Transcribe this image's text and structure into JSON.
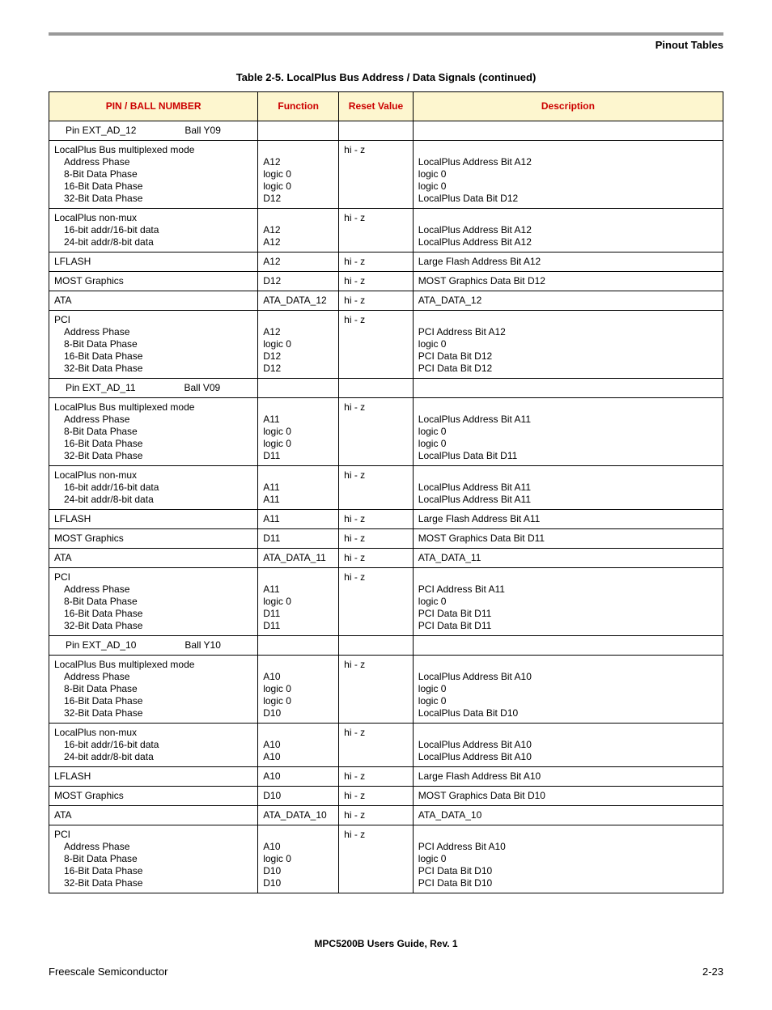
{
  "header": {
    "section": "Pinout Tables"
  },
  "table": {
    "title": "Table 2-5. LocalPlus Bus Address / Data Signals (continued)",
    "columns": [
      "PIN / BALL NUMBER",
      "Function",
      "Reset Value",
      "Description"
    ],
    "groups": [
      {
        "pin_label_prefix": "Pin  EXT_AD_12",
        "pin_label_ball": "Ball Y09",
        "rows": [
          {
            "c1": "LocalPlus Bus multiplexed mode\n  Address Phase\n  8-Bit Data Phase\n  16-Bit Data Phase\n  32-Bit Data Phase",
            "c2": "\nA12\nlogic 0\nlogic 0\nD12",
            "c3": "hi - z",
            "c4": "\nLocalPlus Address Bit A12\nlogic 0\nlogic 0\nLocalPlus Data Bit D12"
          },
          {
            "c1": "LocalPlus non-mux\n  16-bit addr/16-bit data\n  24-bit addr/8-bit data",
            "c2": "\nA12\nA12",
            "c3": "hi - z",
            "c4": "\nLocalPlus Address Bit A12\nLocalPlus Address Bit A12"
          },
          {
            "c1": "LFLASH",
            "c2": "A12",
            "c3": "hi - z",
            "c4": "Large Flash Address Bit A12"
          },
          {
            "c1": "MOST Graphics",
            "c2": "D12",
            "c3": "hi - z",
            "c4": "MOST Graphics Data Bit D12"
          },
          {
            "c1": "ATA",
            "c2": "ATA_DATA_12",
            "c3": "hi - z",
            "c4": "ATA_DATA_12"
          },
          {
            "c1": "PCI\n  Address Phase\n  8-Bit Data Phase\n  16-Bit Data Phase\n  32-Bit Data Phase",
            "c2": "\nA12\nlogic 0\nD12\nD12",
            "c3": "hi - z",
            "c4": "\nPCI Address Bit A12\nlogic 0\nPCI Data Bit D12\nPCI Data Bit D12"
          }
        ]
      },
      {
        "pin_label_prefix": "Pin  EXT_AD_11",
        "pin_label_ball": "Ball V09",
        "rows": [
          {
            "c1": "LocalPlus Bus multiplexed mode\n  Address Phase\n  8-Bit Data Phase\n  16-Bit Data Phase\n  32-Bit Data Phase",
            "c2": "\nA11\nlogic 0\nlogic 0\nD11",
            "c3": "hi - z",
            "c4": "\nLocalPlus Address Bit A11\nlogic 0\nlogic 0\nLocalPlus Data Bit D11"
          },
          {
            "c1": "LocalPlus non-mux\n  16-bit addr/16-bit data\n  24-bit addr/8-bit data",
            "c2": "\nA11\nA11",
            "c3": "hi - z",
            "c4": "\nLocalPlus Address Bit A11\nLocalPlus Address Bit A11"
          },
          {
            "c1": "LFLASH",
            "c2": "A11",
            "c3": "hi - z",
            "c4": "Large Flash Address Bit A11"
          },
          {
            "c1": "MOST Graphics",
            "c2": "D11",
            "c3": "hi - z",
            "c4": "MOST Graphics Data Bit D11"
          },
          {
            "c1": "ATA",
            "c2": "ATA_DATA_11",
            "c3": "hi - z",
            "c4": "ATA_DATA_11"
          },
          {
            "c1": "PCI\n  Address Phase\n  8-Bit Data Phase\n  16-Bit Data Phase\n  32-Bit Data Phase",
            "c2": "\nA11\nlogic 0\nD11\nD11",
            "c3": "hi - z",
            "c4": "\nPCI Address Bit A11\nlogic 0\nPCI Data Bit D11\nPCI Data Bit D11"
          }
        ]
      },
      {
        "pin_label_prefix": "Pin  EXT_AD_10",
        "pin_label_ball": "Ball Y10",
        "rows": [
          {
            "c1": "LocalPlus Bus multiplexed mode\n  Address Phase\n  8-Bit Data Phase\n  16-Bit Data Phase\n  32-Bit Data Phase",
            "c2": "\nA10\nlogic 0\nlogic 0\nD10",
            "c3": "hi - z",
            "c4": "\nLocalPlus Address Bit A10\nlogic 0\nlogic 0\nLocalPlus Data Bit D10"
          },
          {
            "c1": "LocalPlus non-mux\n  16-bit addr/16-bit data\n  24-bit addr/8-bit data",
            "c2": "\nA10\nA10",
            "c3": "hi - z",
            "c4": "\nLocalPlus Address Bit A10\nLocalPlus Address Bit A10"
          },
          {
            "c1": "LFLASH",
            "c2": "A10",
            "c3": "hi - z",
            "c4": "Large Flash Address Bit A10"
          },
          {
            "c1": "MOST Graphics",
            "c2": "D10",
            "c3": "hi - z",
            "c4": "MOST Graphics Data Bit D10"
          },
          {
            "c1": "ATA",
            "c2": "ATA_DATA_10",
            "c3": "hi - z",
            "c4": "ATA_DATA_10"
          },
          {
            "c1": "PCI\n  Address Phase\n  8-Bit Data Phase\n  16-Bit Data Phase\n  32-Bit Data Phase",
            "c2": "\nA10\nlogic 0\nD10\nD10",
            "c3": "hi - z",
            "c4": "\nPCI Address Bit A10\nlogic 0\nPCI Data Bit D10\nPCI Data Bit D10"
          }
        ]
      }
    ]
  },
  "footer": {
    "doc": "MPC5200B Users Guide, Rev. 1",
    "left": "Freescale Semiconductor",
    "right": "2-23"
  }
}
